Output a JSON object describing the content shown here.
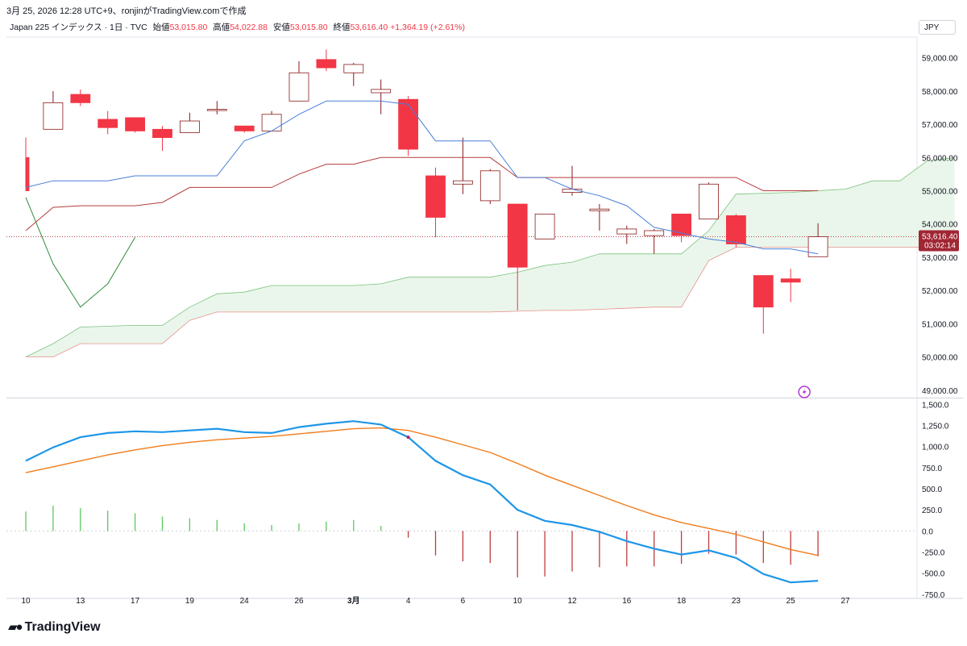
{
  "header": {
    "caption": "3月 25, 2026 12:28 UTC+9、ronjinがTradingView.comで作成",
    "symbol": "Japan 225 インデックス · 1日 · TVC",
    "open_label": "始値",
    "open": "53,015.80",
    "high_label": "高値",
    "high": "54,022.88",
    "low_label": "安値",
    "low": "53,015.80",
    "close_label": "終値",
    "close": "53,616.40",
    "change": "+1,364.19 (+2.61%)",
    "currency": "JPY"
  },
  "price_tag": {
    "price": "53,616.40",
    "countdown": "03:02:14"
  },
  "brand": {
    "name": "TradingView",
    "icon": "tradingview-logo-icon"
  },
  "colors": {
    "up": "#ffffff",
    "up_border": "#8b1a1a",
    "down": "#f23645",
    "tenkan": "#4a7fd8",
    "kijun": "#b63c3c",
    "chikou": "#2e8b3a",
    "cloud": "#e8f5e9",
    "macd": "#1e96e8",
    "signal": "#f07c1a"
  },
  "chart_data": [
    {
      "type": "candlestick",
      "title": "",
      "ylim": [
        48800,
        59600
      ],
      "y_ticks": [
        "59,000.00",
        "58,000.00",
        "57,000.00",
        "56,000.00",
        "55,000.00",
        "54,000.00",
        "53,000.00",
        "52,000.00",
        "51,000.00",
        "50,000.00",
        "49,000.00"
      ],
      "y_tick_values": [
        59000,
        58000,
        57000,
        56000,
        55000,
        54000,
        53000,
        52000,
        51000,
        50000,
        49000
      ],
      "x_labels": [
        "10",
        "13",
        "17",
        "19",
        "24",
        "26",
        "3月",
        "4",
        "6",
        "10",
        "12",
        "16",
        "18",
        "23",
        "25",
        "27"
      ],
      "x_label_index": [
        1,
        3,
        5,
        7,
        9,
        11,
        13,
        15,
        17,
        19,
        21,
        23,
        25,
        27,
        29,
        31
      ],
      "last_price": 53616.4,
      "candles": [
        {
          "i": 0,
          "o": 56000,
          "h": 56600,
          "l": 55100,
          "c": 55000
        },
        {
          "i": 1,
          "o": 56850,
          "h": 58000,
          "l": 56850,
          "c": 57650
        },
        {
          "i": 2,
          "o": 57900,
          "h": 58050,
          "l": 57550,
          "c": 57650
        },
        {
          "i": 3,
          "o": 57150,
          "h": 57400,
          "l": 56700,
          "c": 56900
        },
        {
          "i": 4,
          "o": 57200,
          "h": 57200,
          "l": 56750,
          "c": 56800
        },
        {
          "i": 5,
          "o": 56850,
          "h": 56950,
          "l": 56200,
          "c": 56600
        },
        {
          "i": 6,
          "o": 56750,
          "h": 57350,
          "l": 56750,
          "c": 57100
        },
        {
          "i": 7,
          "o": 57450,
          "h": 57700,
          "l": 57300,
          "c": 57450
        },
        {
          "i": 8,
          "o": 56950,
          "h": 56950,
          "l": 56750,
          "c": 56800
        },
        {
          "i": 9,
          "o": 56800,
          "h": 57400,
          "l": 56800,
          "c": 57300
        },
        {
          "i": 10,
          "o": 57700,
          "h": 58900,
          "l": 57700,
          "c": 58550
        },
        {
          "i": 11,
          "o": 58950,
          "h": 59250,
          "l": 58600,
          "c": 58700
        },
        {
          "i": 12,
          "o": 58550,
          "h": 58850,
          "l": 58150,
          "c": 58800
        },
        {
          "i": 13,
          "o": 57950,
          "h": 58350,
          "l": 57300,
          "c": 58050
        },
        {
          "i": 14,
          "o": 57750,
          "h": 57850,
          "l": 56050,
          "c": 56250
        },
        {
          "i": 15,
          "o": 55450,
          "h": 55700,
          "l": 53600,
          "c": 54200
        },
        {
          "i": 16,
          "o": 55200,
          "h": 56600,
          "l": 54900,
          "c": 55300
        },
        {
          "i": 17,
          "o": 54700,
          "h": 55650,
          "l": 54600,
          "c": 55600
        },
        {
          "i": 18,
          "o": 54600,
          "h": 54600,
          "l": 51400,
          "c": 52700
        },
        {
          "i": 19,
          "o": 53550,
          "h": 54300,
          "l": 53550,
          "c": 54300
        },
        {
          "i": 20,
          "o": 54950,
          "h": 55750,
          "l": 54850,
          "c": 55050
        },
        {
          "i": 21,
          "o": 54400,
          "h": 54600,
          "l": 53800,
          "c": 54450
        },
        {
          "i": 22,
          "o": 53700,
          "h": 53950,
          "l": 53400,
          "c": 53850
        },
        {
          "i": 23,
          "o": 53650,
          "h": 53850,
          "l": 53100,
          "c": 53800
        },
        {
          "i": 24,
          "o": 54300,
          "h": 54300,
          "l": 53450,
          "c": 53650
        },
        {
          "i": 25,
          "o": 54150,
          "h": 55250,
          "l": 54150,
          "c": 55200
        },
        {
          "i": 26,
          "o": 54250,
          "h": 54300,
          "l": 53300,
          "c": 53400
        },
        {
          "i": 27,
          "o": 52450,
          "h": 52450,
          "l": 50700,
          "c": 51500
        },
        {
          "i": 28,
          "o": 52350,
          "h": 52650,
          "l": 51650,
          "c": 52250
        },
        {
          "i": 29,
          "o": 53015.8,
          "h": 54022.88,
          "l": 53015.8,
          "c": 53616.4
        }
      ],
      "tenkan": [
        [
          0,
          55100
        ],
        [
          1,
          55300
        ],
        [
          3,
          55300
        ],
        [
          4,
          55450
        ],
        [
          7,
          55450
        ],
        [
          8,
          56500
        ],
        [
          9,
          56800
        ],
        [
          10,
          57300
        ],
        [
          11,
          57700
        ],
        [
          13,
          57700
        ],
        [
          14,
          57600
        ],
        [
          15,
          56500
        ],
        [
          17,
          56500
        ],
        [
          18,
          55400
        ],
        [
          19,
          55400
        ],
        [
          20,
          55050
        ],
        [
          21,
          54850
        ],
        [
          22,
          54550
        ],
        [
          23,
          53900
        ],
        [
          25,
          53550
        ],
        [
          26,
          53450
        ],
        [
          27,
          53250
        ],
        [
          28,
          53250
        ],
        [
          29,
          53100
        ]
      ],
      "kijun": [
        [
          0,
          53800
        ],
        [
          1,
          54500
        ],
        [
          2,
          54550
        ],
        [
          4,
          54550
        ],
        [
          5,
          54650
        ],
        [
          6,
          55100
        ],
        [
          9,
          55100
        ],
        [
          10,
          55500
        ],
        [
          11,
          55800
        ],
        [
          12,
          55800
        ],
        [
          13,
          56000
        ],
        [
          17,
          56000
        ],
        [
          18,
          55400
        ],
        [
          26,
          55400
        ],
        [
          27,
          55000
        ],
        [
          29,
          55000
        ]
      ],
      "span_a": [
        [
          0,
          50000
        ],
        [
          1,
          50400
        ],
        [
          2,
          50900
        ],
        [
          4,
          50950
        ],
        [
          5,
          50950
        ],
        [
          6,
          51500
        ],
        [
          7,
          51900
        ],
        [
          8,
          51950
        ],
        [
          9,
          52150
        ],
        [
          12,
          52150
        ],
        [
          13,
          52200
        ],
        [
          14,
          52400
        ],
        [
          17,
          52400
        ],
        [
          18,
          52550
        ],
        [
          19,
          52750
        ],
        [
          20,
          52850
        ],
        [
          21,
          53100
        ],
        [
          24,
          53100
        ],
        [
          25,
          53800
        ],
        [
          26,
          54900
        ],
        [
          28,
          54950
        ],
        [
          29,
          55000
        ],
        [
          30,
          55050
        ],
        [
          31,
          55300
        ],
        [
          32,
          55300
        ],
        [
          33,
          55900
        ],
        [
          34,
          56000
        ]
      ],
      "span_b": [
        [
          0,
          50000
        ],
        [
          1,
          50000
        ],
        [
          2,
          50400
        ],
        [
          4,
          50400
        ],
        [
          5,
          50400
        ],
        [
          6,
          51100
        ],
        [
          7,
          51350
        ],
        [
          8,
          51350
        ],
        [
          17,
          51350
        ],
        [
          19,
          51400
        ],
        [
          20,
          51400
        ],
        [
          23,
          51500
        ],
        [
          24,
          51500
        ],
        [
          25,
          52900
        ],
        [
          26,
          53300
        ],
        [
          34,
          53300
        ]
      ],
      "chikou": [
        [
          0,
          54800
        ],
        [
          1,
          52800
        ],
        [
          2,
          51500
        ],
        [
          3,
          52200
        ],
        [
          4,
          53600
        ]
      ]
    },
    {
      "type": "macd",
      "title": "",
      "ylim": [
        -780,
        1560
      ],
      "y_ticks": [
        "1,500.0",
        "1,250.0",
        "1,000.0",
        "750.0",
        "500.0",
        "250.0",
        "0.0",
        "-250.0",
        "-500.0",
        "-750.0"
      ],
      "y_tick_values": [
        1500,
        1250,
        1000,
        750,
        500,
        250,
        0,
        -250,
        -500,
        -750
      ],
      "macd": [
        [
          0,
          830
        ],
        [
          1,
          990
        ],
        [
          2,
          1110
        ],
        [
          3,
          1160
        ],
        [
          4,
          1180
        ],
        [
          5,
          1170
        ],
        [
          6,
          1190
        ],
        [
          7,
          1210
        ],
        [
          8,
          1170
        ],
        [
          9,
          1160
        ],
        [
          10,
          1230
        ],
        [
          11,
          1270
        ],
        [
          12,
          1300
        ],
        [
          13,
          1260
        ],
        [
          14,
          1110
        ],
        [
          15,
          830
        ],
        [
          16,
          660
        ],
        [
          17,
          550
        ],
        [
          18,
          250
        ],
        [
          19,
          120
        ],
        [
          20,
          70
        ],
        [
          21,
          -10
        ],
        [
          22,
          -120
        ],
        [
          23,
          -210
        ],
        [
          24,
          -280
        ],
        [
          25,
          -230
        ],
        [
          26,
          -320
        ],
        [
          27,
          -510
        ],
        [
          28,
          -610
        ],
        [
          29,
          -590
        ]
      ],
      "signal": [
        [
          0,
          690
        ],
        [
          1,
          760
        ],
        [
          2,
          830
        ],
        [
          3,
          900
        ],
        [
          4,
          960
        ],
        [
          5,
          1010
        ],
        [
          6,
          1050
        ],
        [
          7,
          1080
        ],
        [
          8,
          1100
        ],
        [
          9,
          1120
        ],
        [
          10,
          1150
        ],
        [
          11,
          1180
        ],
        [
          12,
          1210
        ],
        [
          13,
          1220
        ],
        [
          14,
          1190
        ],
        [
          15,
          1110
        ],
        [
          16,
          1020
        ],
        [
          17,
          930
        ],
        [
          18,
          800
        ],
        [
          19,
          660
        ],
        [
          20,
          540
        ],
        [
          21,
          420
        ],
        [
          22,
          300
        ],
        [
          23,
          190
        ],
        [
          24,
          100
        ],
        [
          25,
          30
        ],
        [
          26,
          -40
        ],
        [
          27,
          -130
        ],
        [
          28,
          -220
        ],
        [
          29,
          -290
        ]
      ],
      "histogram": [
        [
          0,
          230
        ],
        [
          1,
          300
        ],
        [
          2,
          270
        ],
        [
          3,
          240
        ],
        [
          4,
          210
        ],
        [
          5,
          170
        ],
        [
          6,
          150
        ],
        [
          7,
          130
        ],
        [
          8,
          90
        ],
        [
          9,
          70
        ],
        [
          10,
          90
        ],
        [
          11,
          110
        ],
        [
          12,
          130
        ],
        [
          13,
          60
        ],
        [
          14,
          -80
        ],
        [
          15,
          -290
        ],
        [
          16,
          -360
        ],
        [
          17,
          -380
        ],
        [
          18,
          -550
        ],
        [
          19,
          -540
        ],
        [
          20,
          -480
        ],
        [
          21,
          -430
        ],
        [
          22,
          -420
        ],
        [
          23,
          -420
        ],
        [
          24,
          -390
        ],
        [
          25,
          -270
        ],
        [
          26,
          -280
        ],
        [
          27,
          -380
        ],
        [
          28,
          -400
        ],
        [
          29,
          -300
        ]
      ]
    }
  ]
}
